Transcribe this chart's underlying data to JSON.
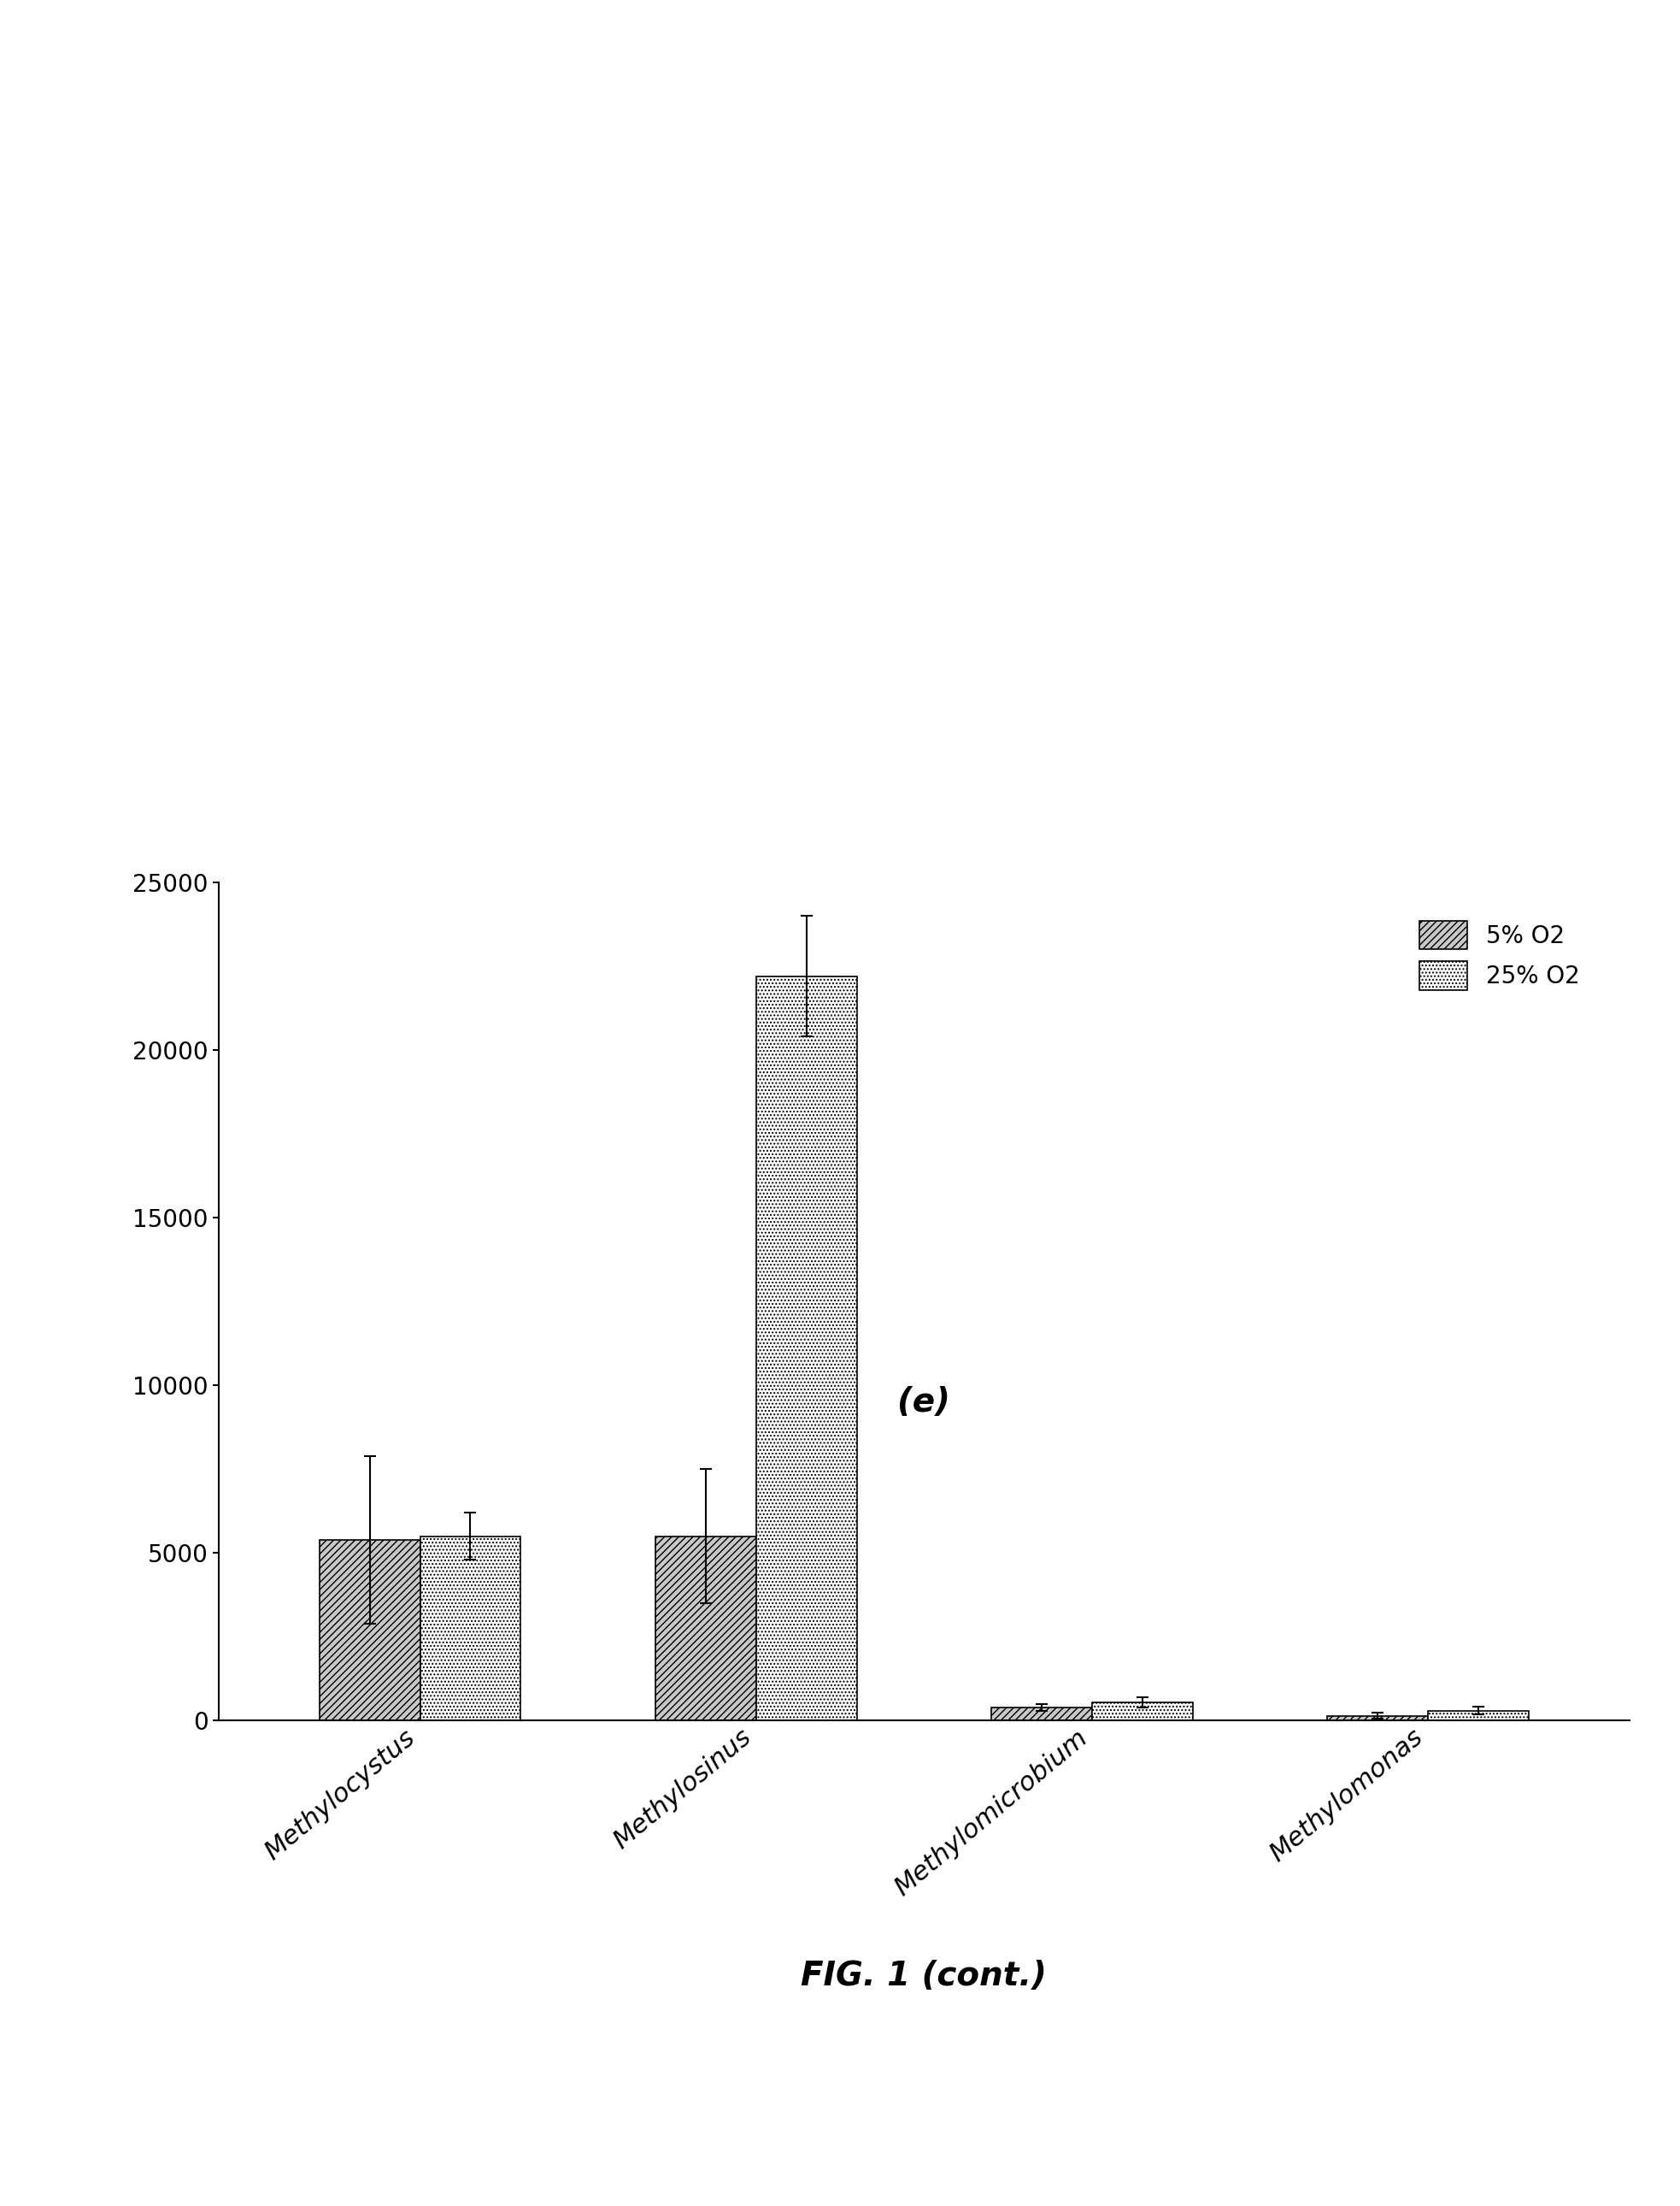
{
  "categories": [
    "Methylocystus",
    "Methylosinus",
    "Methylomicrobium",
    "Methylomonas"
  ],
  "series_5pct": [
    5400,
    5500,
    400,
    150
  ],
  "series_25pct": [
    5500,
    22200,
    550,
    300
  ],
  "err_5pct": [
    2500,
    2000,
    100,
    80
  ],
  "err_25pct": [
    700,
    1800,
    150,
    120
  ],
  "ylim": [
    0,
    25000
  ],
  "yticks": [
    0,
    5000,
    10000,
    15000,
    20000,
    25000
  ],
  "legend_labels": [
    "5% O2",
    "25% O2"
  ],
  "bar_width": 0.3,
  "color_5pct": "#c8c8c8",
  "color_25pct": "#ffffff",
  "hatch_5pct": "////",
  "hatch_25pct": "....",
  "edge_color": "#000000",
  "label_e": "(e)",
  "label_fig": "FIG. 1 (cont.)",
  "background_color": "#ffffff",
  "tick_fontsize": 20,
  "label_fontsize": 22,
  "legend_fontsize": 20
}
